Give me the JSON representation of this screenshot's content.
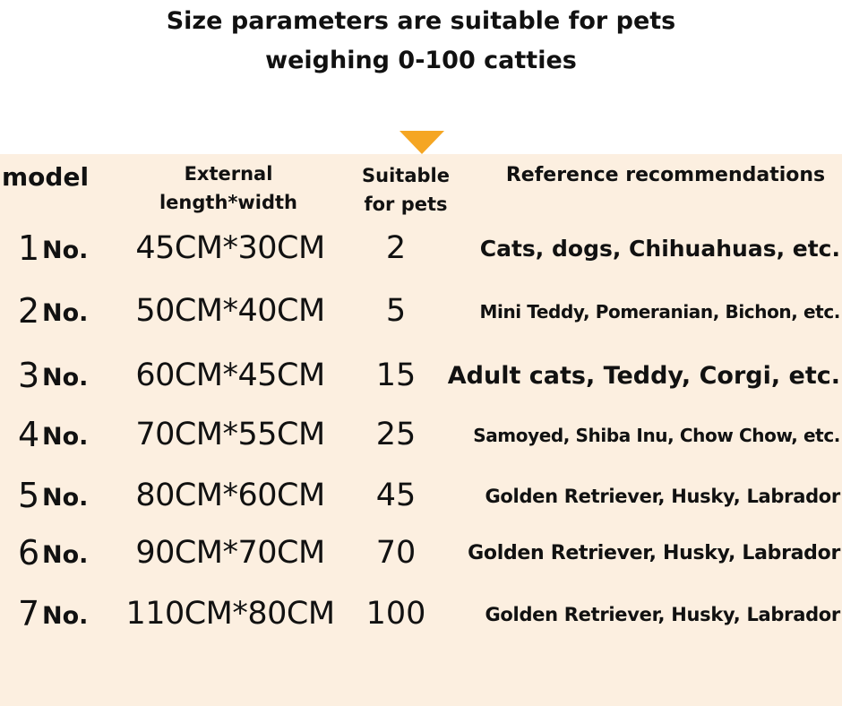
{
  "title": {
    "line1": "Size parameters are suitable for pets",
    "line2": "weighing 0-100 catties"
  },
  "accent_color": "#f5a623",
  "panel_color": "#fcefe0",
  "headers": {
    "model": "model",
    "external": "External length*width",
    "suitable": "Suitable for pets",
    "reference": "Reference recommendations"
  },
  "rows": [
    {
      "num": "1",
      "no": "No.",
      "size": "45CM*30CM",
      "pets": "2",
      "ref": "Cats, dogs, Chihuahuas, etc."
    },
    {
      "num": "2",
      "no": "No.",
      "size": "50CM*40CM",
      "pets": "5",
      "ref": "Mini Teddy, Pomeranian, Bichon, etc."
    },
    {
      "num": "3",
      "no": "No.",
      "size": "60CM*45CM",
      "pets": "15",
      "ref": "Adult cats, Teddy, Corgi, etc."
    },
    {
      "num": "4",
      "no": "No.",
      "size": "70CM*55CM",
      "pets": "25",
      "ref": "Samoyed, Shiba Inu, Chow Chow, etc."
    },
    {
      "num": "5",
      "no": "No.",
      "size": "80CM*60CM",
      "pets": "45",
      "ref": "Golden Retriever, Husky, Labrador"
    },
    {
      "num": "6",
      "no": "No.",
      "size": "90CM*70CM",
      "pets": "70",
      "ref": "Golden Retriever, Husky, Labrador"
    },
    {
      "num": "7",
      "no": "No.",
      "size": "110CM*80CM",
      "pets": "100",
      "ref": "Golden Retriever, Husky, Labrador"
    }
  ]
}
